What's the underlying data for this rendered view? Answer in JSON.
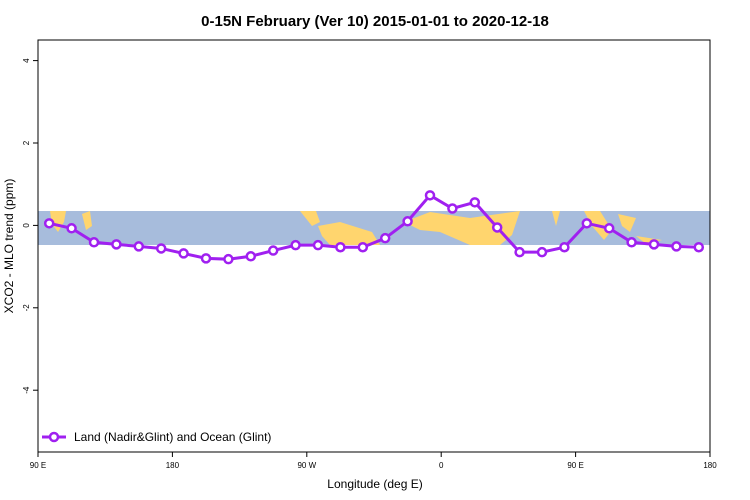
{
  "chart_data": {
    "type": "line",
    "title": "0-15N February (Ver 10)   2015-01-01 to 2020-12-18",
    "x_label": "Longitude (deg E)",
    "y_label": "XCO2 - MLO trend (ppm)",
    "x": [
      97.5,
      112.5,
      127.5,
      142.5,
      157.5,
      172.5,
      187.5,
      202.5,
      217.5,
      232.5,
      247.5,
      262.5,
      277.5,
      292.5,
      307.5,
      322.5,
      337.5,
      352.5,
      367.5,
      382.5,
      397.5,
      412.5,
      427.5,
      442.5,
      457.5,
      472.5,
      487.5,
      502.5,
      517.5,
      532.5
    ],
    "series": [
      {
        "name": "Land (Nadir&Glint) and Ocean (Glint)",
        "color": "#a020f0",
        "values": [
          0.05,
          -0.07,
          -0.41,
          -0.46,
          -0.51,
          -0.56,
          -0.68,
          -0.8,
          -0.82,
          -0.75,
          -0.61,
          -0.48,
          -0.48,
          -0.53,
          -0.53,
          -0.31,
          0.1,
          0.73,
          0.41,
          0.56,
          -0.05,
          -0.65,
          -0.65,
          -0.53,
          0.05,
          -0.07,
          -0.41,
          -0.46,
          -0.51,
          -0.53
        ]
      }
    ],
    "xlim": [
      90,
      540
    ],
    "ylim": [
      -5.5,
      4.5
    ],
    "xticks": [
      {
        "value": 90,
        "label": "90 E"
      },
      180,
      {
        "value": 270,
        "label": "90 W"
      },
      {
        "value": 360,
        "label": "0"
      },
      {
        "value": 450,
        "label": "90 E"
      },
      {
        "value": 540,
        "label": "180"
      }
    ],
    "yticks": [
      -4,
      -2,
      0,
      2,
      4
    ],
    "legend": "bottom-left"
  }
}
